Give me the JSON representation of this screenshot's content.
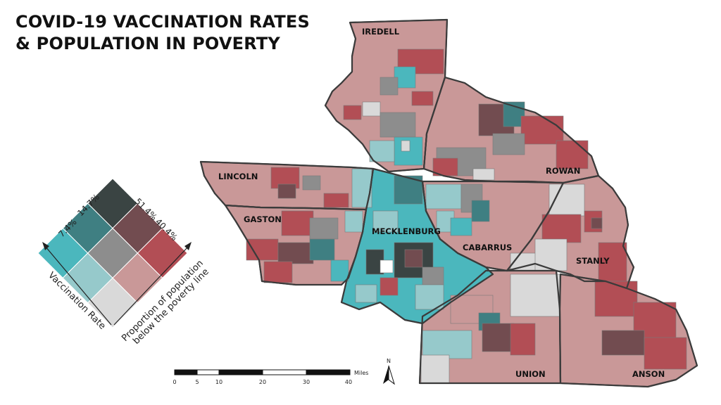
{
  "title": {
    "line1": "COVID-19 VACCINATION RATES",
    "line2": "& POPULATION IN POVERTY"
  },
  "counties": [
    "IREDELL",
    "ROWAN",
    "LINCOLN",
    "GASTON",
    "MECKLENBURG",
    "CABARRUS",
    "STANLY",
    "UNION",
    "ANSON"
  ],
  "legend": {
    "vaccination_ticks": [
      "7.4%",
      "14.7%"
    ],
    "poverty_ticks": [
      "51.4%",
      "40.4%"
    ],
    "vaccination_axis": "Vaccination Rate",
    "poverty_axis_line1": "Proportion of population",
    "poverty_axis_line2": "below the poverty line",
    "colors": {
      "low_low": "#d9d9d9",
      "low_mid": "#c99898",
      "low_high": "#b24e55",
      "mid_low": "#96c9cb",
      "mid_mid": "#8d8d8d",
      "mid_high": "#724c50",
      "high_low": "#4bb7bd",
      "high_mid": "#3f7f82",
      "high_high": "#3a4443"
    }
  },
  "scale_bar": {
    "ticks": [
      "0",
      "5",
      "10",
      "20",
      "30",
      "40"
    ],
    "unit": "Miles"
  },
  "north_arrow": "N"
}
